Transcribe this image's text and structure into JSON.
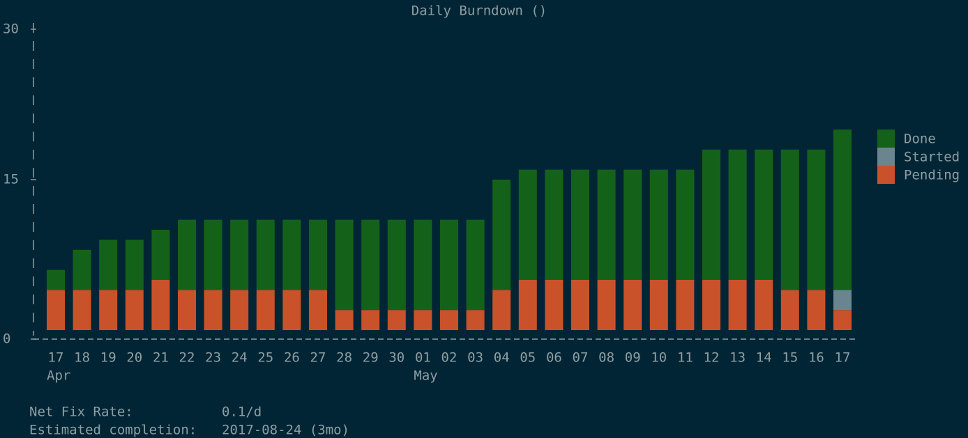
{
  "chart_data": {
    "type": "stacked-bar",
    "title": "Daily Burndown ()",
    "categories": [
      "17",
      "18",
      "19",
      "20",
      "21",
      "22",
      "23",
      "24",
      "25",
      "26",
      "27",
      "28",
      "29",
      "30",
      "01",
      "02",
      "03",
      "04",
      "05",
      "06",
      "07",
      "08",
      "09",
      "10",
      "11",
      "12",
      "13",
      "14",
      "15",
      "16",
      "17"
    ],
    "month_labels": [
      "Apr",
      null,
      null,
      null,
      null,
      null,
      null,
      null,
      null,
      null,
      null,
      null,
      null,
      null,
      "May",
      null,
      null,
      null,
      null,
      null,
      null,
      null,
      null,
      null,
      null,
      null,
      null,
      null,
      null,
      null,
      null
    ],
    "series": [
      {
        "name": "Done",
        "color": "#14621a",
        "values": [
          2,
          4,
          5,
          5,
          5,
          7,
          7,
          7,
          7,
          7,
          7,
          9,
          9,
          9,
          9,
          9,
          9,
          11,
          11,
          11,
          11,
          11,
          11,
          11,
          11,
          13,
          13,
          13,
          14,
          14,
          16
        ]
      },
      {
        "name": "Started",
        "color": "#6a8490",
        "values": [
          0,
          0,
          0,
          0,
          0,
          0,
          0,
          0,
          0,
          0,
          0,
          0,
          0,
          0,
          0,
          0,
          0,
          0,
          0,
          0,
          0,
          0,
          0,
          0,
          0,
          0,
          0,
          0,
          0,
          0,
          2
        ]
      },
      {
        "name": "Pending",
        "color": "#c9522b",
        "values": [
          4,
          4,
          4,
          4,
          5,
          4,
          4,
          4,
          4,
          4,
          4,
          2,
          2,
          2,
          2,
          2,
          2,
          4,
          5,
          5,
          5,
          5,
          5,
          5,
          5,
          5,
          5,
          5,
          4,
          4,
          2
        ]
      }
    ],
    "ylim": [
      0,
      30
    ],
    "yticks": [
      0,
      15,
      30
    ],
    "legend": "right"
  },
  "footer": {
    "rows": [
      [
        "Net Fix Rate:",
        "0.1/d"
      ],
      [
        "Estimated completion:",
        "2017-08-24 (3mo)"
      ]
    ]
  }
}
